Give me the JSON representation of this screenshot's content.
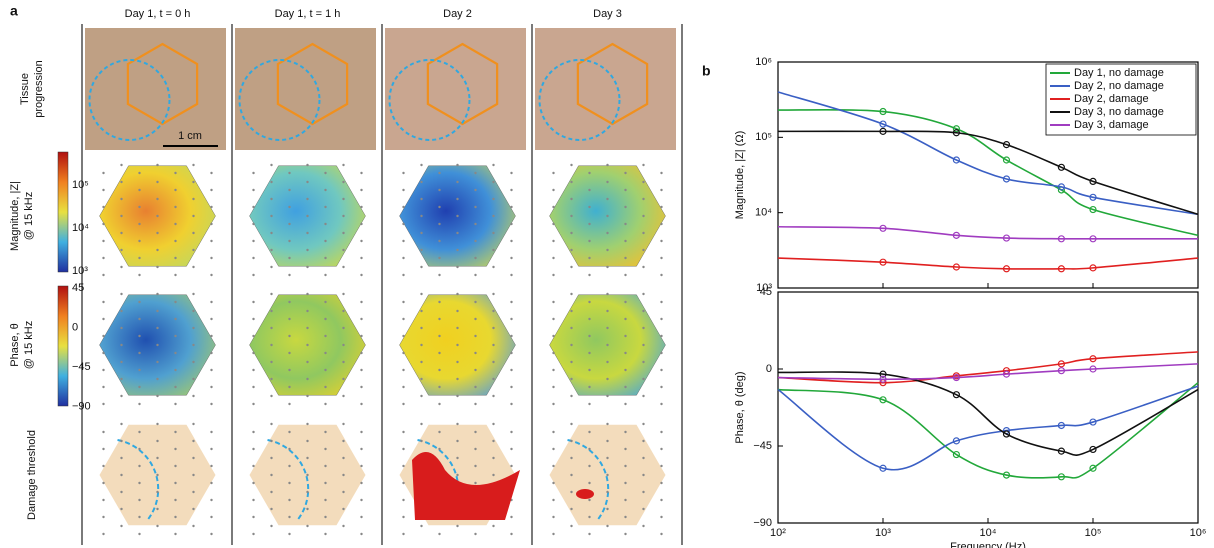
{
  "panel_a": {
    "label": "a",
    "columns": [
      "Day 1, t = 0 h",
      "Day 1, t = 1 h",
      "Day 2",
      "Day 3"
    ],
    "rows": [
      [
        "Tissue",
        "progression"
      ],
      [
        "Magnitude, |Z|",
        "@ 15 kHz"
      ],
      [
        "Phase, θ",
        "@ 15 kHz"
      ],
      [
        "Damage threshold"
      ]
    ],
    "scale_bar": "1 cm",
    "magnitude_colorbar": [
      "10⁵",
      "10⁴",
      "10³"
    ],
    "phase_colorbar": [
      "45",
      "0",
      "−45",
      "−90"
    ]
  },
  "panel_b_label": "b",
  "chart_data": [
    {
      "type": "line",
      "ylabel": "Magnitude, |Z| (Ω)",
      "log_x": true,
      "log_y": true,
      "legend": "upper right",
      "x": [
        100,
        1000,
        5000,
        15000,
        50000,
        100000,
        1000000
      ],
      "xlim": [
        100,
        1000000
      ],
      "xticks": [
        100,
        1000,
        10000,
        100000,
        1000000
      ],
      "ylim": [
        1000,
        1000000
      ],
      "yticks": [
        {
          "value": 1000,
          "label": "10³"
        },
        {
          "value": 10000,
          "label": "10⁴"
        },
        {
          "value": 100000,
          "label": "10⁵"
        },
        {
          "value": 1000000,
          "label": "10⁶"
        }
      ],
      "series": [
        {
          "name": "Day 1, no damage",
          "color": "#22a83a",
          "values": [
            230000,
            220000,
            130000,
            50000,
            20000,
            11000,
            5000
          ]
        },
        {
          "name": "Day 2, no damage",
          "color": "#3a5fc4",
          "values": [
            400000,
            150000,
            50000,
            28000,
            22000,
            16000,
            9500
          ]
        },
        {
          "name": "Day 2, damage",
          "color": "#e02020",
          "values": [
            2500,
            2200,
            1900,
            1800,
            1800,
            1850,
            2500
          ]
        },
        {
          "name": "Day 3, no damage",
          "color": "#111111",
          "values": [
            120000,
            120000,
            115000,
            80000,
            40000,
            26000,
            9500
          ]
        },
        {
          "name": "Day 3, damage",
          "color": "#a03cc0",
          "values": [
            6500,
            6200,
            5000,
            4600,
            4500,
            4500,
            4500
          ]
        }
      ]
    },
    {
      "type": "line",
      "xlabel": "Frequency  (Hz)",
      "ylabel": "Phase, θ (deg)",
      "log_x": true,
      "log_y": false,
      "x": [
        100,
        1000,
        5000,
        15000,
        50000,
        100000,
        1000000
      ],
      "xlim": [
        100,
        1000000
      ],
      "xticks": [
        {
          "value": 100,
          "label": "10²"
        },
        {
          "value": 1000,
          "label": "10³"
        },
        {
          "value": 10000,
          "label": "10⁴"
        },
        {
          "value": 100000,
          "label": "10⁵"
        },
        {
          "value": 1000000,
          "label": "10⁶"
        }
      ],
      "ylim": [
        -90,
        45
      ],
      "yticks": [
        {
          "value": -90,
          "label": "−90"
        },
        {
          "value": -45,
          "label": "−45"
        },
        0,
        45
      ],
      "series": [
        {
          "name": "Day 1, no damage",
          "color": "#22a83a",
          "values": [
            -12,
            -18,
            -50,
            -62,
            -63,
            -58,
            -8
          ]
        },
        {
          "name": "Day 2, no damage",
          "color": "#3a5fc4",
          "values": [
            -12,
            -58,
            -42,
            -36,
            -33,
            -31,
            -10
          ]
        },
        {
          "name": "Day 2, damage",
          "color": "#e02020",
          "values": [
            -5,
            -8,
            -4,
            -1,
            3,
            6,
            10
          ]
        },
        {
          "name": "Day 3, no damage",
          "color": "#111111",
          "values": [
            -2,
            -3,
            -15,
            -38,
            -48,
            -47,
            -12
          ]
        },
        {
          "name": "Day 3, damage",
          "color": "#a03cc0",
          "values": [
            -5,
            -6,
            -5,
            -3,
            -1,
            0,
            3
          ]
        }
      ]
    }
  ]
}
